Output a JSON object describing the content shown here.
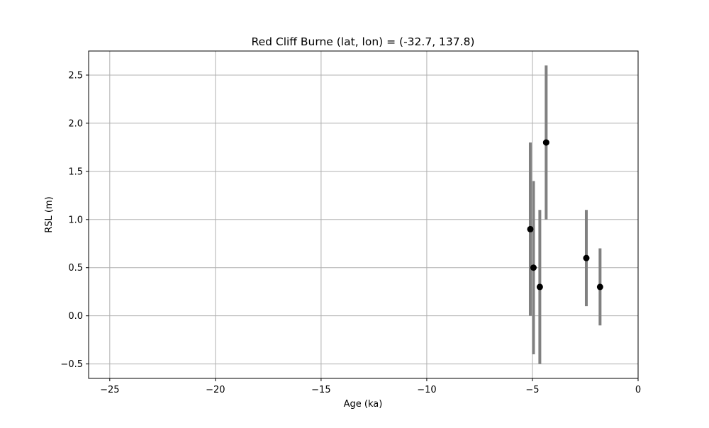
{
  "chart_data": {
    "type": "scatter",
    "title": "Red Cliff Burne (lat, lon) = (-32.7, 137.8)",
    "xlabel": "Age (ka)",
    "ylabel": "RSL (m)",
    "xlim": [
      -26,
      0
    ],
    "ylim": [
      -0.65,
      2.75
    ],
    "grid": true,
    "x_ticks": [
      -25,
      -20,
      -15,
      -10,
      -5,
      0
    ],
    "x_tick_labels": [
      "−25",
      "−20",
      "−15",
      "−10",
      "−5",
      "0"
    ],
    "y_ticks": [
      -0.5,
      0.0,
      0.5,
      1.0,
      1.5,
      2.0,
      2.5
    ],
    "y_tick_labels": [
      "−0.5",
      "0.0",
      "0.5",
      "1.0",
      "1.5",
      "2.0",
      "2.5"
    ],
    "points": [
      {
        "x": -5.1,
        "y": 0.9,
        "ylow": 0.0,
        "yhigh": 1.8
      },
      {
        "x": -4.95,
        "y": 0.5,
        "ylow": -0.4,
        "yhigh": 1.4
      },
      {
        "x": -4.65,
        "y": 0.3,
        "ylow": -0.5,
        "yhigh": 1.1
      },
      {
        "x": -4.35,
        "y": 1.8,
        "ylow": 1.0,
        "yhigh": 2.6
      },
      {
        "x": -2.45,
        "y": 0.6,
        "ylow": 0.1,
        "yhigh": 1.1
      },
      {
        "x": -1.8,
        "y": 0.3,
        "ylow": -0.1,
        "yhigh": 0.7
      }
    ],
    "colors": {
      "marker": "#000000",
      "errorbar": "#808080",
      "grid": "#b0b0b0"
    }
  }
}
